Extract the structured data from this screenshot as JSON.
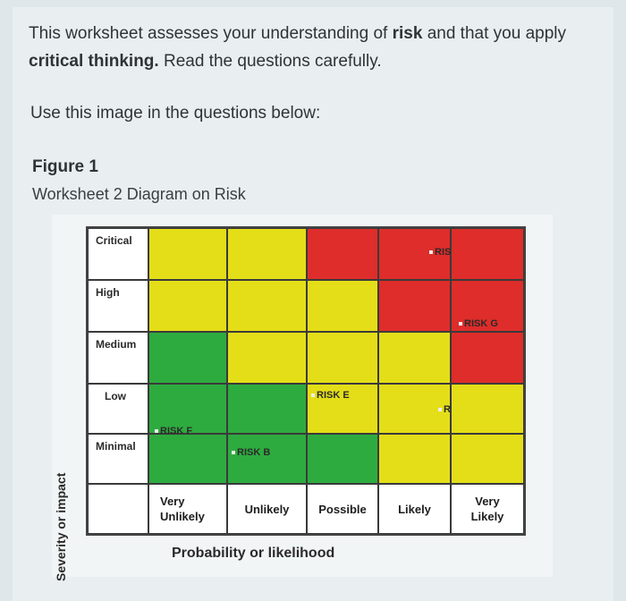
{
  "intro": {
    "line1_a": "This worksheet assesses your understanding of ",
    "line1_bold": "risk",
    "line1_b": " and that you apply",
    "line2_bold": "critical thinking.",
    "line2_b": " Read the questions carefully."
  },
  "use_text": "Use this image in the questions below:",
  "figure": {
    "title": "Figure 1",
    "subtitle": "Worksheet 2 Diagram on Risk"
  },
  "diagram": {
    "severity_levels": [
      "Critical",
      "High",
      "Medium",
      "Low",
      "Minimal"
    ],
    "probability_labels": [
      {
        "line1": "Very",
        "line2": "Unlikely"
      },
      {
        "line1": "",
        "line2": "Unlikely"
      },
      {
        "line1": "",
        "line2": "Possible"
      },
      {
        "line1": "",
        "line2": "Likely"
      },
      {
        "line1": "Very",
        "line2": "Likely"
      }
    ],
    "y_axis_label": "Severity or impact",
    "x_axis_label": "Probability or likelihood",
    "colors": {
      "green": "#2eab3f",
      "yellow": "#e4de18",
      "red": "#de2d2a"
    },
    "risks": {
      "a": "RISK C",
      "b": "RISK G",
      "c": "RISK E",
      "d": "RISK D",
      "e": "RISK F",
      "f": "RISK B"
    }
  }
}
